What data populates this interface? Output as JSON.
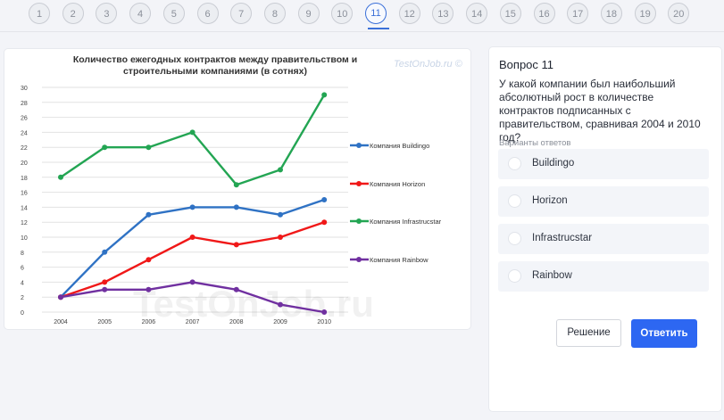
{
  "pagination": {
    "pages": [
      "1",
      "2",
      "3",
      "4",
      "5",
      "6",
      "7",
      "8",
      "9",
      "10",
      "11",
      "12",
      "13",
      "14",
      "15",
      "16",
      "17",
      "18",
      "19",
      "20"
    ],
    "active_index": 10
  },
  "question": {
    "title": "Вопрос 11",
    "text": "У какой компании был наибольший абсолютный рост в количестве контрактов подписанных с правительством, сравнивая 2004 и 2010 год?",
    "options_label": "Варианты ответов",
    "options": [
      "Buildingo",
      "Horizon",
      "Infrastrucstar",
      "Rainbow"
    ],
    "solution_label": "Решение",
    "answer_label": "Ответить"
  },
  "chart_data": {
    "type": "line",
    "title": "Количество ежегодных контрактов между правительством и строительными компаниями (в сотнях)",
    "title_lines": [
      "Количество ежегодных контрактов между правительством и",
      "строительными компаниями (в сотнях)"
    ],
    "watermark_top": "TestOnJob.ru ©",
    "watermark_center": "TestOnJob.ru",
    "x": [
      "2004",
      "2005",
      "2006",
      "2007",
      "2008",
      "2009",
      "2010"
    ],
    "ylim": [
      0,
      30
    ],
    "yticks": [
      0,
      2,
      4,
      6,
      8,
      10,
      12,
      14,
      16,
      18,
      20,
      22,
      24,
      26,
      28,
      30
    ],
    "grid": true,
    "legend_position": "right",
    "series": [
      {
        "name": "Компания Buildingo",
        "color": "#2f72c4",
        "values": [
          2,
          8,
          13,
          14,
          14,
          13,
          15
        ]
      },
      {
        "name": "Компания Horizon",
        "color": "#f01818",
        "values": [
          2,
          4,
          7,
          10,
          9,
          10,
          12
        ]
      },
      {
        "name": "Компания Infrastrucstar",
        "color": "#23a553",
        "values": [
          18,
          22,
          22,
          24,
          17,
          19,
          29
        ]
      },
      {
        "name": "Компания Rainbow",
        "color": "#7030a0",
        "values": [
          2,
          3,
          3,
          4,
          3,
          1,
          0
        ]
      }
    ]
  }
}
